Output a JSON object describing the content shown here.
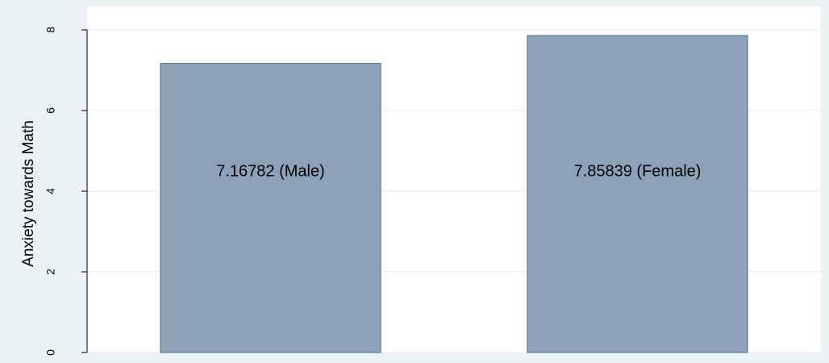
{
  "chart_data": {
    "type": "bar",
    "y_label": "Anxiety towards Math",
    "values": [
      7.16782,
      7.85839
    ],
    "value_labels": [
      "7.16782 (Male)",
      "7.85839 (Female)"
    ],
    "color": "#8ca2b8",
    "ylim": [
      0,
      8
    ],
    "yticks": [
      0,
      2,
      4,
      6,
      8
    ],
    "grid": true
  }
}
